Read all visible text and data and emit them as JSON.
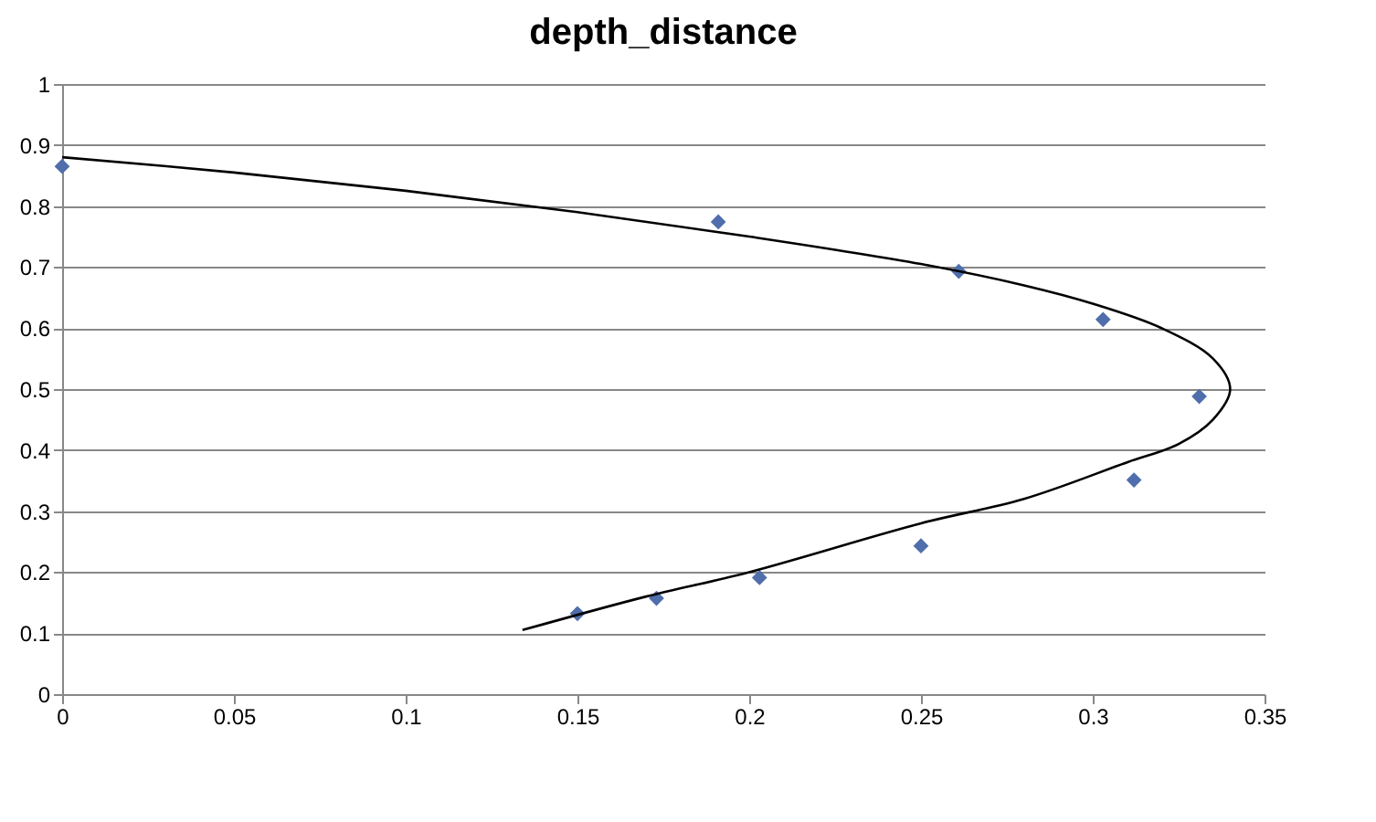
{
  "chart_data": {
    "type": "scatter",
    "title": "depth_distance",
    "x": [
      0,
      0.191,
      0.261,
      0.303,
      0.331,
      0.312,
      0.25,
      0.203,
      0.173,
      0.15
    ],
    "series": [
      {
        "type": "scatter",
        "color": "#4f6eab",
        "marker": "diamond",
        "values": [
          0.865,
          0.774,
          0.693,
          0.614,
          0.488,
          0.351,
          0.243,
          0.191,
          0.157,
          0.132
        ]
      },
      {
        "type": "line",
        "color": "#000000",
        "marker": "none",
        "x": [
          0,
          0.05,
          0.1,
          0.15,
          0.2,
          0.25,
          0.28,
          0.3,
          0.32,
          0.335,
          0.34,
          0.335,
          0.325,
          0.31,
          0.28,
          0.25,
          0.2,
          0.17,
          0.134
        ],
        "values": [
          0.88,
          0.855,
          0.825,
          0.79,
          0.75,
          0.705,
          0.67,
          0.64,
          0.6,
          0.55,
          0.5,
          0.45,
          0.41,
          0.38,
          0.32,
          0.28,
          0.2,
          0.16,
          0.105
        ]
      }
    ],
    "xlim": [
      0,
      0.35
    ],
    "xticks": [
      0,
      0.05,
      0.1,
      0.15,
      0.2,
      0.25,
      0.3,
      0.35
    ],
    "ylim": [
      0,
      1
    ],
    "yticks": [
      0,
      0.1,
      0.2,
      0.3,
      0.4,
      0.5,
      0.6,
      0.7,
      0.8,
      0.9,
      1
    ],
    "grid": "y"
  }
}
